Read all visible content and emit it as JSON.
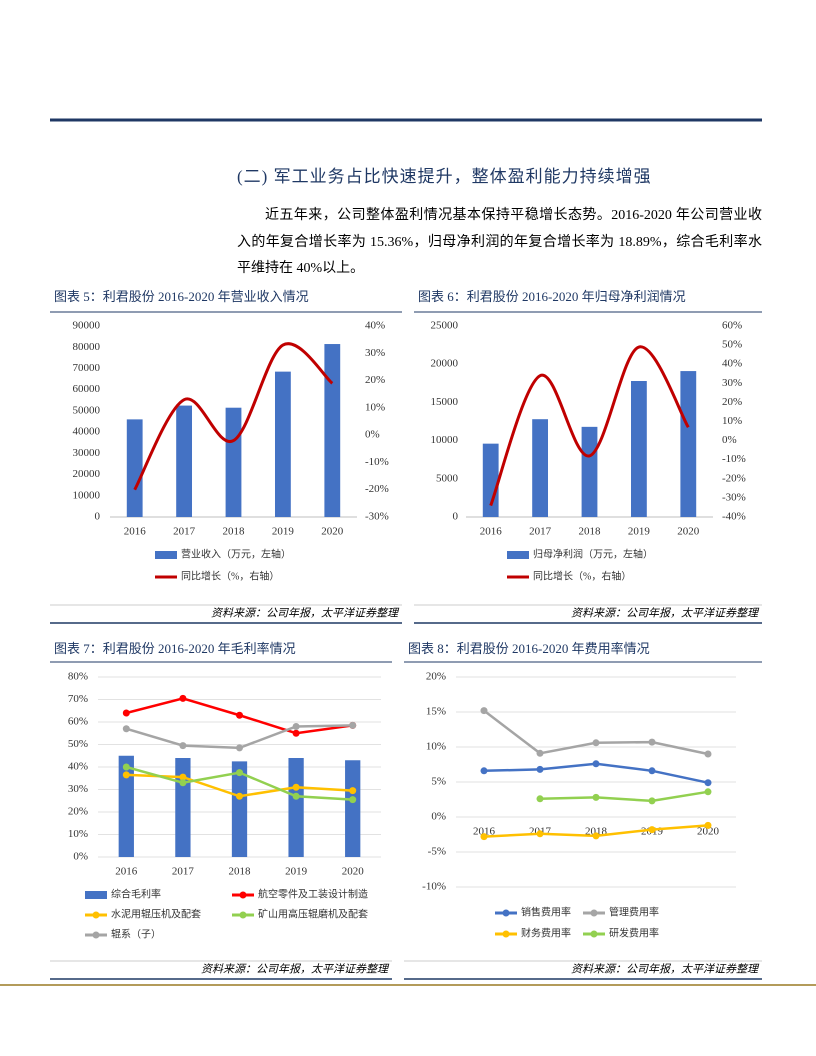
{
  "section_title": "(二) 军工业务占比快速提升，整体盈利能力持续增强",
  "paragraph": "近五年来，公司整体盈利情况基本保持平稳增长态势。2016-2020 年公司营业收入的年复合增长率为 15.36%，归母净利润的年复合增长率为 18.89%，综合毛利率水平维持在 40%以上。",
  "chart_data": [
    {
      "type": "combo",
      "title": "图表 5：利君股份 2016-2020 年营业收入情况",
      "source": "资料来源：公司年报，太平洋证券整理",
      "categories": [
        "2016",
        "2017",
        "2018",
        "2019",
        "2020"
      ],
      "ylim": [
        0,
        90000
      ],
      "yticks": [
        0,
        10000,
        20000,
        30000,
        40000,
        50000,
        60000,
        70000,
        80000,
        90000
      ],
      "y2lim": [
        -30,
        40
      ],
      "y2ticks": [
        {
          "value": -30,
          "label": "-30%"
        },
        {
          "value": -20,
          "label": "-20%"
        },
        {
          "value": -10,
          "label": "-10%"
        },
        {
          "value": 0,
          "label": "0%"
        },
        {
          "value": 10,
          "label": "10%"
        },
        {
          "value": 20,
          "label": "20%"
        },
        {
          "value": 30,
          "label": "30%"
        },
        {
          "value": 40,
          "label": "40%"
        }
      ],
      "grid": false,
      "smooth": true,
      "markers": false,
      "series": [
        {
          "name": "营业收入（万元，左轴）",
          "type": "bar",
          "color": "#4472c4",
          "values": [
            46000,
            52500,
            51500,
            68500,
            81500
          ]
        },
        {
          "name": "同比增长（%，右轴）",
          "type": "line",
          "axis": "y2",
          "color": "#c00000",
          "values": [
            -20,
            13,
            -2,
            33,
            19
          ]
        }
      ]
    },
    {
      "type": "combo",
      "title": "图表 6：利君股份 2016-2020 年归母净利润情况",
      "source": "资料来源：公司年报，太平洋证券整理",
      "categories": [
        "2016",
        "2017",
        "2018",
        "2019",
        "2020"
      ],
      "ylim": [
        0,
        25000
      ],
      "yticks": [
        0,
        5000,
        10000,
        15000,
        20000,
        25000
      ],
      "y2lim": [
        -40,
        60
      ],
      "y2ticks": [
        {
          "value": -40,
          "label": "-40%"
        },
        {
          "value": -30,
          "label": "-30%"
        },
        {
          "value": -20,
          "label": "-20%"
        },
        {
          "value": -10,
          "label": "-10%"
        },
        {
          "value": 0,
          "label": "0%"
        },
        {
          "value": 10,
          "label": "10%"
        },
        {
          "value": 20,
          "label": "20%"
        },
        {
          "value": 30,
          "label": "30%"
        },
        {
          "value": 40,
          "label": "40%"
        },
        {
          "value": 50,
          "label": "50%"
        },
        {
          "value": 60,
          "label": "60%"
        }
      ],
      "grid": false,
      "smooth": true,
      "markers": false,
      "series": [
        {
          "name": "归母净利润（万元，左轴）",
          "type": "bar",
          "color": "#4472c4",
          "values": [
            9600,
            12800,
            11800,
            17800,
            19100
          ]
        },
        {
          "name": "同比增长（%，右轴）",
          "type": "line",
          "axis": "y2",
          "color": "#c00000",
          "values": [
            -34,
            34,
            -8,
            49,
            7
          ]
        }
      ]
    },
    {
      "type": "combo",
      "title": "图表 7：利君股份 2016-2020 年毛利率情况",
      "source": "资料来源：公司年报，太平洋证券整理",
      "categories": [
        "2016",
        "2017",
        "2018",
        "2019",
        "2020"
      ],
      "ylim": [
        0,
        80
      ],
      "yticks": [
        {
          "value": 0,
          "label": "0%"
        },
        {
          "value": 10,
          "label": "10%"
        },
        {
          "value": 20,
          "label": "20%"
        },
        {
          "value": 30,
          "label": "30%"
        },
        {
          "value": 40,
          "label": "40%"
        },
        {
          "value": 50,
          "label": "50%"
        },
        {
          "value": 60,
          "label": "60%"
        },
        {
          "value": 70,
          "label": "70%"
        },
        {
          "value": 80,
          "label": "80%"
        }
      ],
      "grid": true,
      "smooth": false,
      "markers": true,
      "series": [
        {
          "name": "综合毛利率",
          "type": "bar",
          "color": "#4472c4",
          "values": [
            45,
            44,
            42.5,
            44,
            43
          ]
        },
        {
          "name": "航空零件及工装设计制造",
          "type": "line",
          "color": "#ff0000",
          "values": [
            64,
            70.5,
            63,
            55,
            58.5
          ]
        },
        {
          "name": "水泥用辊压机及配套",
          "type": "line",
          "color": "#ffc000",
          "values": [
            36.5,
            35.5,
            27,
            31,
            29.5
          ]
        },
        {
          "name": "矿山用高压辊磨机及配套",
          "type": "line",
          "color": "#92d050",
          "values": [
            40,
            33,
            37.5,
            27,
            25.5
          ]
        },
        {
          "name": "辊系（子）",
          "type": "line",
          "color": "#a5a5a5",
          "values": [
            57,
            49.5,
            48.5,
            58,
            58.5
          ]
        }
      ]
    },
    {
      "type": "line",
      "title": "图表 8：利君股份 2016-2020 年费用率情况",
      "source": "资料来源：公司年报，太平洋证券整理",
      "categories": [
        "2016",
        "2017",
        "2018",
        "2019",
        "2020"
      ],
      "ylim": [
        -10,
        20
      ],
      "yticks": [
        {
          "value": -10,
          "label": "-10%"
        },
        {
          "value": -5,
          "label": "-5%"
        },
        {
          "value": 0,
          "label": "0%"
        },
        {
          "value": 5,
          "label": "5%"
        },
        {
          "value": 10,
          "label": "10%"
        },
        {
          "value": 15,
          "label": "15%"
        },
        {
          "value": 20,
          "label": "20%"
        }
      ],
      "grid": true,
      "smooth": false,
      "markers": true,
      "series": [
        {
          "name": "销售费用率",
          "type": "line",
          "color": "#4472c4",
          "values": [
            6.6,
            6.8,
            7.6,
            6.6,
            4.9
          ]
        },
        {
          "name": "管理费用率",
          "type": "line",
          "color": "#a5a5a5",
          "values": [
            15.2,
            9.1,
            10.6,
            10.7,
            9.0
          ]
        },
        {
          "name": "财务费用率",
          "type": "line",
          "color": "#ffc000",
          "values": [
            -2.8,
            -2.4,
            -2.7,
            -1.8,
            -1.2
          ]
        },
        {
          "name": "研发费用率",
          "type": "line",
          "color": "#92d050",
          "values": [
            null,
            2.6,
            2.8,
            2.3,
            3.6
          ]
        }
      ]
    }
  ]
}
